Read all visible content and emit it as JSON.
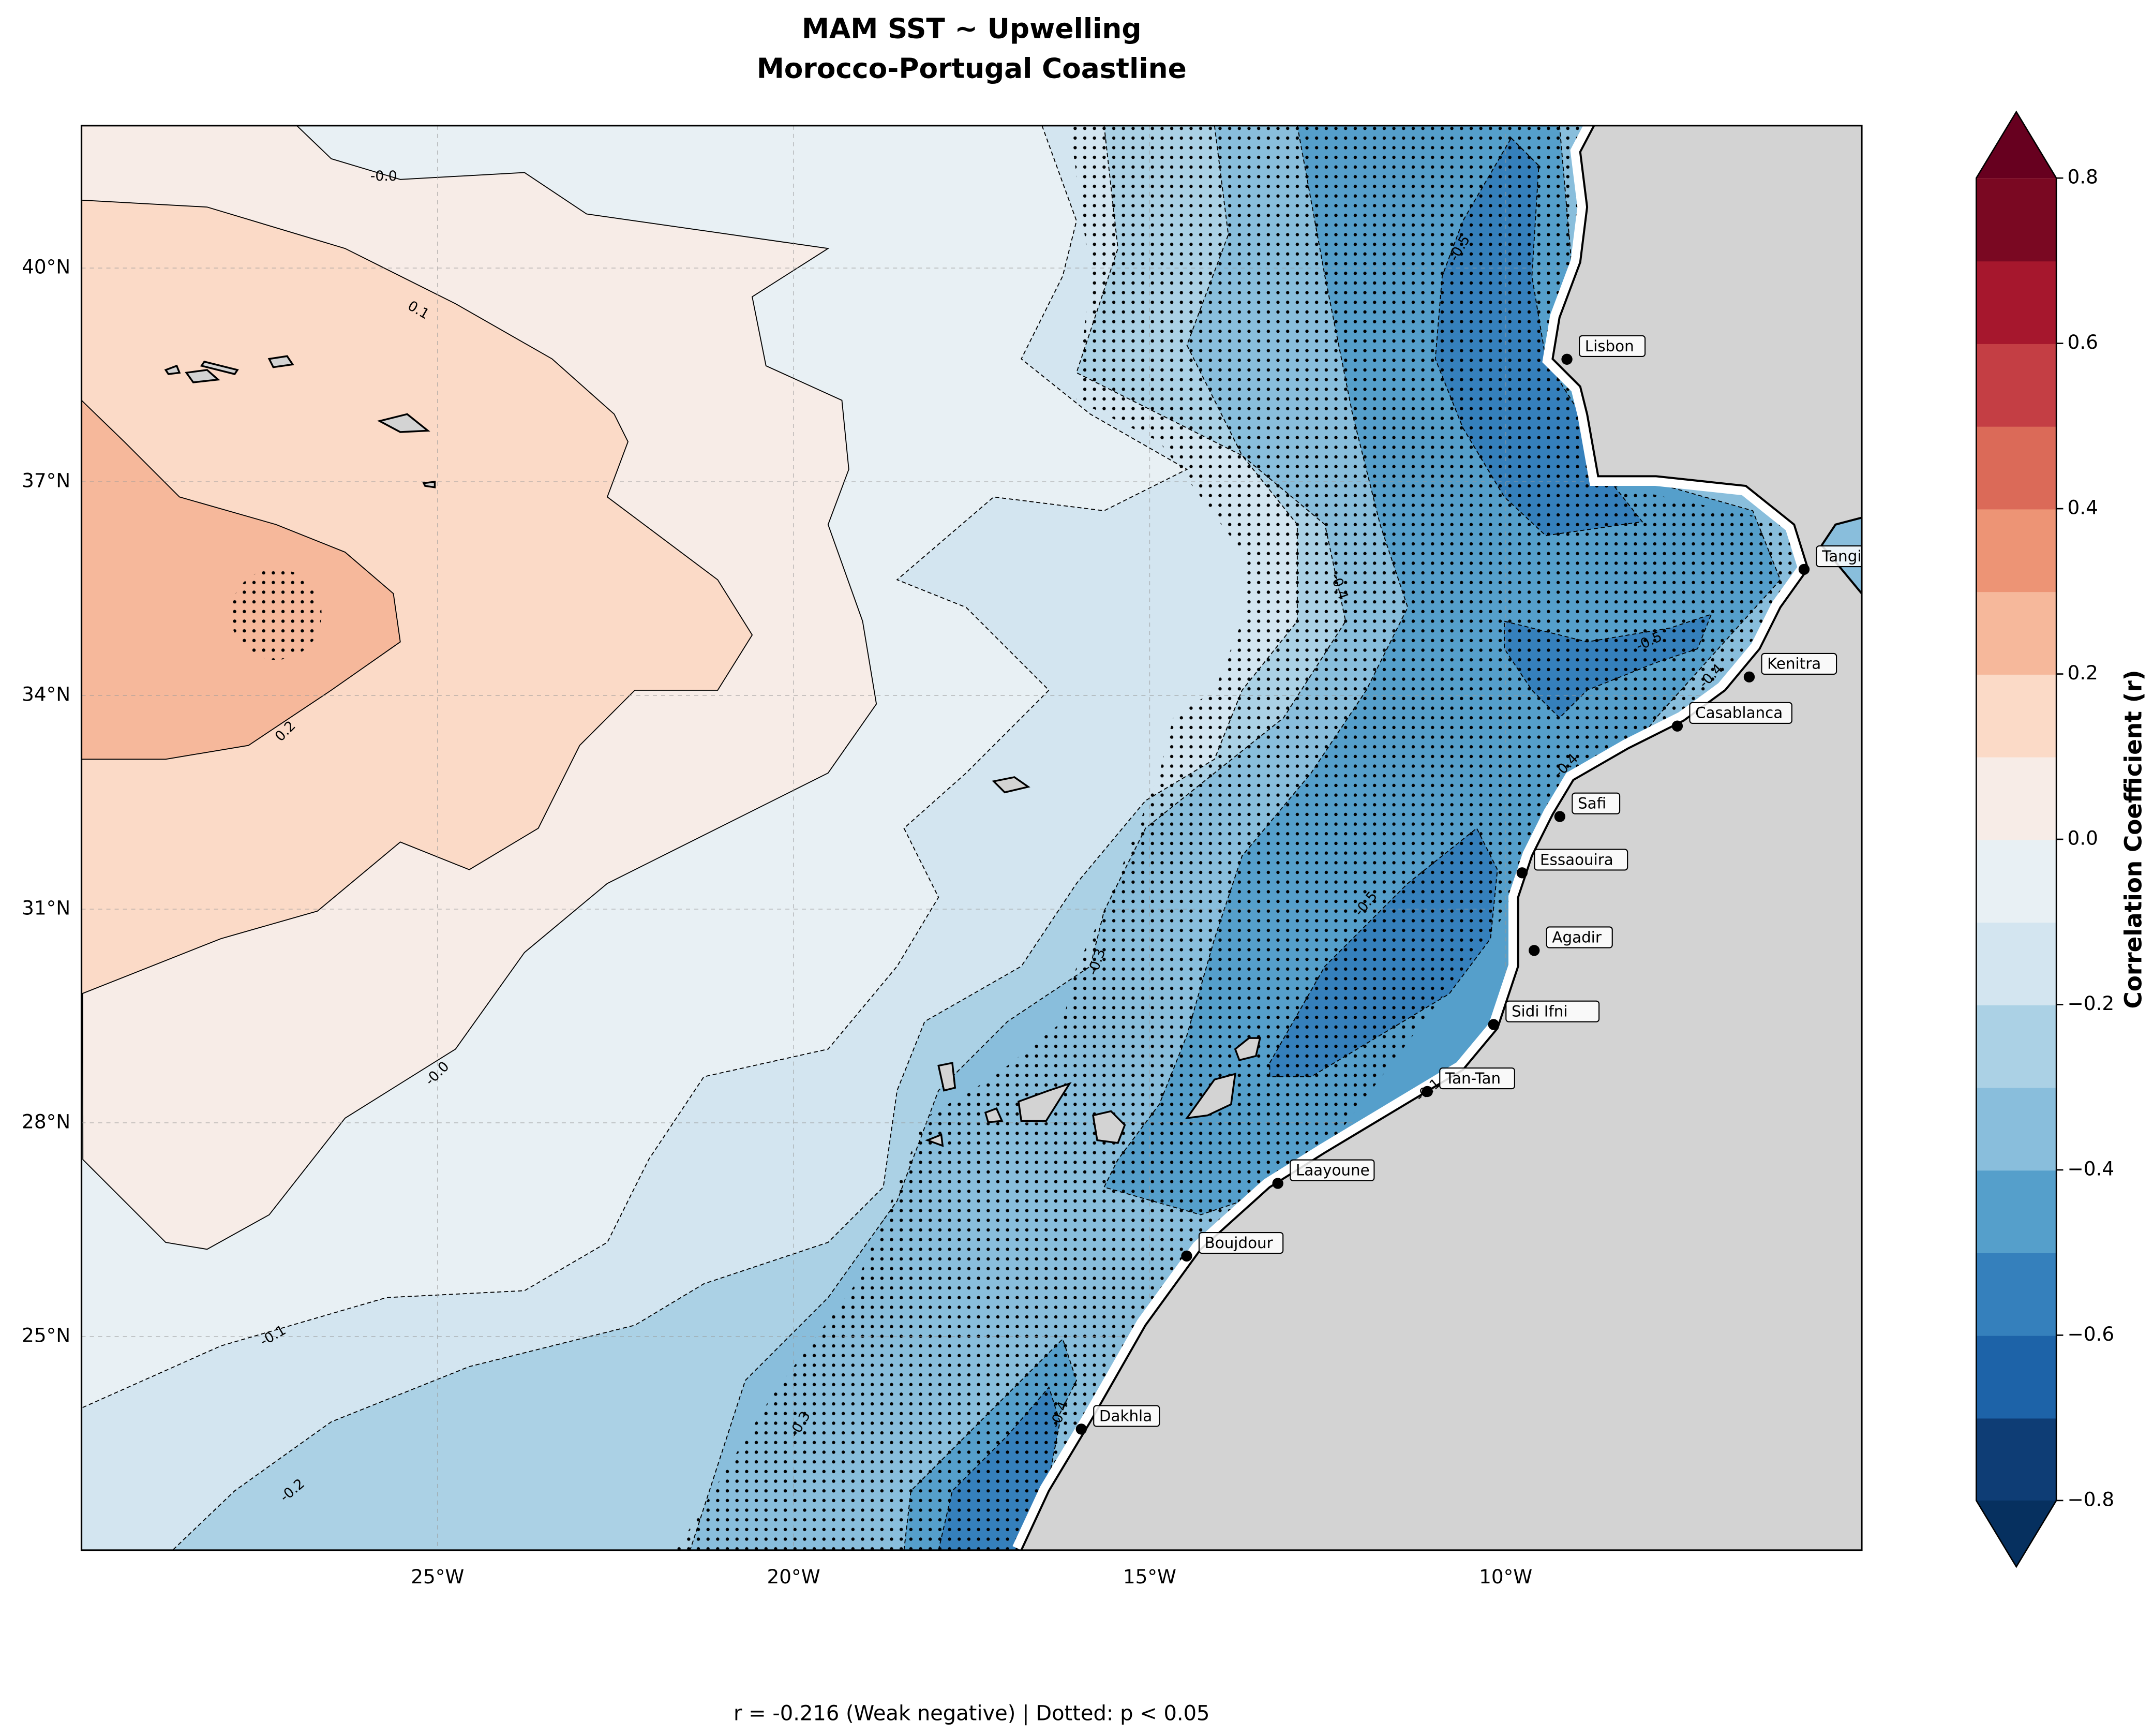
{
  "map": {
    "title_lines": [
      "MAM SST ~ Upwelling",
      "Morocco-Portugal Coastline"
    ],
    "xlim": [
      -30,
      -5
    ],
    "ylim": [
      22,
      42
    ],
    "xticks": [
      {
        "value": -25,
        "label": "25°W"
      },
      {
        "value": -20,
        "label": "20°W"
      },
      {
        "value": -15,
        "label": "15°W"
      },
      {
        "value": -10,
        "label": "10°W"
      }
    ],
    "yticks": [
      {
        "value": 25,
        "label": "25°N"
      },
      {
        "value": 28,
        "label": "28°N"
      },
      {
        "value": 31,
        "label": "31°N"
      },
      {
        "value": 34,
        "label": "34°N"
      },
      {
        "value": 37,
        "label": "37°N"
      },
      {
        "value": 40,
        "label": "40°N"
      }
    ],
    "grid": true,
    "land_color": "#d3d3d3",
    "colorbar": {
      "label": "Correlation Coefficient (r)",
      "lim": [
        -0.8,
        0.8
      ],
      "ticks": [
        0.8,
        0.6,
        0.4,
        0.2,
        {
          "value": 0,
          "label": "0.0"
        },
        {
          "value": -0.2,
          "label": "−0.2"
        },
        {
          "value": -0.4,
          "label": "−0.4"
        },
        {
          "value": -0.6,
          "label": "−0.6"
        },
        {
          "value": -0.8,
          "label": "−0.8"
        }
      ],
      "colors": [
        "#0e3d75",
        "#1d63a8",
        "#3580bc",
        "#559fcb",
        "#89bedc",
        "#abd1e5",
        "#d3e5f0",
        "#e8f0f4",
        "#f7ece7",
        "#fbdac7",
        "#f6b89b",
        "#ed9475",
        "#db6a58",
        "#c43e44",
        "#a6172d",
        "#7a0822"
      ],
      "extend_colors": [
        "#06305f",
        "#67001f"
      ]
    },
    "cities": [
      {
        "name": "Lisbon",
        "lon": -9.14,
        "lat": 38.72
      },
      {
        "name": "Tangier",
        "lon": -5.81,
        "lat": 35.77
      },
      {
        "name": "Kenitra",
        "lon": -6.58,
        "lat": 34.26
      },
      {
        "name": "Casablanca",
        "lon": -7.59,
        "lat": 33.57
      },
      {
        "name": "Safi",
        "lon": -9.24,
        "lat": 32.3
      },
      {
        "name": "Essaouira",
        "lon": -9.77,
        "lat": 31.51
      },
      {
        "name": "Agadir",
        "lon": -9.6,
        "lat": 30.42
      },
      {
        "name": "Sidi Ifni",
        "lon": -10.17,
        "lat": 29.38
      },
      {
        "name": "Tan-Tan",
        "lon": -11.1,
        "lat": 28.44
      },
      {
        "name": "Laayoune",
        "lon": -13.2,
        "lat": 27.15
      },
      {
        "name": "Boujdour",
        "lon": -14.48,
        "lat": 26.13
      },
      {
        "name": "Dakhla",
        "lon": -15.96,
        "lat": 23.7
      }
    ],
    "contour_labels": [
      "-0.0",
      "0.1",
      "0.2",
      "-0.0",
      "-0.1",
      "-0.2",
      "-0.3",
      "-0.3",
      "-0.4",
      "-0.4",
      "-0.5",
      "-0.5",
      "-0.5",
      "-0.4",
      "-0.4",
      "-0.1"
    ],
    "footer": "r = -0.216 (Weak negative) | Dotted: p < 0.05"
  }
}
